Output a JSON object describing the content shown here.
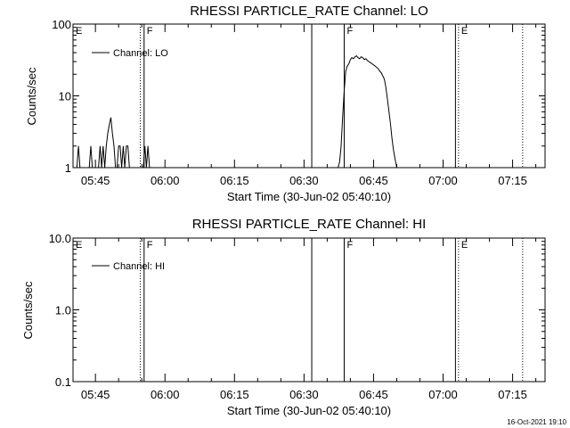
{
  "timestamp": "16-Oct-2021 19:10",
  "chart_data": [
    {
      "type": "line",
      "title": "RHESSI PARTICLE_RATE Channel: LO",
      "xlabel": "Start Time (30-Jun-02 05:40:10)",
      "ylabel": "Counts/sec",
      "yscale": "log",
      "xlim": [
        "05:40:10",
        "07:22:00"
      ],
      "ylim": [
        1,
        100
      ],
      "xticks": [
        "05:45",
        "06:00",
        "06:15",
        "06:30",
        "06:45",
        "07:00",
        "07:15"
      ],
      "yticks": [
        "1",
        "10",
        "100"
      ],
      "legend": "Channel: LO",
      "legend_position": "top-left",
      "events": [
        {
          "label": "E",
          "time": "05:40:10",
          "style": "none"
        },
        {
          "label": "",
          "time": "05:54:40",
          "style": "dotted"
        },
        {
          "label": "F",
          "time": "05:55:30",
          "style": "solid"
        },
        {
          "label": "",
          "time": "06:31:40",
          "style": "solid"
        },
        {
          "label": "F",
          "time": "06:38:40",
          "style": "solid"
        },
        {
          "label": "",
          "time": "07:02:40",
          "style": "solid"
        },
        {
          "label": "E",
          "time": "07:03:20",
          "style": "dotted"
        },
        {
          "label": "",
          "time": "07:17:10",
          "style": "dotted"
        }
      ],
      "series": [
        {
          "name": "Channel: LO",
          "x": [
            "05:41:00",
            "05:41:20",
            "05:41:40",
            "05:42:10",
            "05:43:40",
            "05:44:00",
            "05:44:20",
            "05:44:40",
            "05:45:20",
            "05:45:40",
            "05:46:00",
            "05:46:20",
            "05:46:40",
            "05:47:00",
            "05:47:20",
            "05:47:40",
            "05:48:00",
            "05:48:20",
            "05:48:40",
            "05:49:00",
            "05:49:20",
            "05:49:40",
            "05:50:00",
            "05:50:20",
            "05:50:40",
            "05:51:00",
            "05:51:20",
            "05:51:40",
            "05:52:00",
            "05:52:20",
            "05:52:40",
            "05:53:00",
            "05:53:20",
            "05:53:40",
            "05:54:00",
            "05:54:20",
            "05:54:40",
            "05:55:00",
            "05:55:20",
            "05:55:40",
            "05:56:00",
            "05:56:20",
            "05:56:40",
            "05:57:20"
          ],
          "y": [
            1,
            2,
            1,
            1,
            1,
            2,
            1,
            1,
            1,
            1,
            2,
            1,
            2,
            1,
            2,
            3,
            4,
            5,
            3,
            2,
            1,
            1,
            2,
            2,
            1,
            2,
            1,
            2,
            2,
            1,
            1,
            1,
            1,
            1,
            1,
            1,
            1,
            1,
            1,
            2,
            1,
            2,
            1,
            1
          ]
        },
        {
          "name": "Channel: LO",
          "x": [
            "06:37:20",
            "06:37:40",
            "06:38:00",
            "06:38:20",
            "06:38:40",
            "06:39:00",
            "06:39:20",
            "06:39:40",
            "06:40:00",
            "06:40:20",
            "06:40:40",
            "06:41:00",
            "06:41:20",
            "06:41:40",
            "06:42:00",
            "06:42:20",
            "06:42:40",
            "06:43:00",
            "06:43:20",
            "06:43:40",
            "06:44:00",
            "06:44:20",
            "06:44:40",
            "06:45:00",
            "06:45:20",
            "06:45:40",
            "06:46:00",
            "06:46:20",
            "06:46:40",
            "06:47:00",
            "06:47:20",
            "06:47:40",
            "06:48:00",
            "06:48:20",
            "06:48:40",
            "06:49:00",
            "06:49:20",
            "06:49:40",
            "06:50:00",
            "06:50:20"
          ],
          "y": [
            1,
            1.2,
            2,
            5,
            12,
            22,
            26,
            28,
            32,
            34,
            33,
            35,
            36,
            34,
            33,
            35,
            34,
            32,
            33,
            31,
            30,
            29,
            28,
            27,
            26,
            25,
            24,
            22,
            21,
            19,
            17,
            13,
            9,
            6,
            4,
            2.5,
            1.7,
            1.3,
            1,
            1
          ]
        }
      ]
    },
    {
      "type": "line",
      "title": "RHESSI PARTICLE_RATE Channel: HI",
      "xlabel": "Start Time (30-Jun-02 05:40:10)",
      "ylabel": "Counts/sec",
      "yscale": "log",
      "xlim": [
        "05:40:10",
        "07:22:00"
      ],
      "ylim": [
        0.1,
        10
      ],
      "xticks": [
        "05:45",
        "06:00",
        "06:15",
        "06:30",
        "06:45",
        "07:00",
        "07:15"
      ],
      "yticks": [
        "0.1",
        "1.0",
        "10.0"
      ],
      "legend": "Channel: HI",
      "legend_position": "top-left",
      "events": [
        {
          "label": "E",
          "time": "05:40:10",
          "style": "none"
        },
        {
          "label": "",
          "time": "05:54:40",
          "style": "dotted"
        },
        {
          "label": "F",
          "time": "05:55:30",
          "style": "solid"
        },
        {
          "label": "",
          "time": "06:31:40",
          "style": "solid"
        },
        {
          "label": "F",
          "time": "06:38:40",
          "style": "solid"
        },
        {
          "label": "",
          "time": "07:02:40",
          "style": "solid"
        },
        {
          "label": "E",
          "time": "07:03:20",
          "style": "dotted"
        },
        {
          "label": "",
          "time": "07:17:10",
          "style": "dotted"
        }
      ],
      "series": []
    }
  ]
}
